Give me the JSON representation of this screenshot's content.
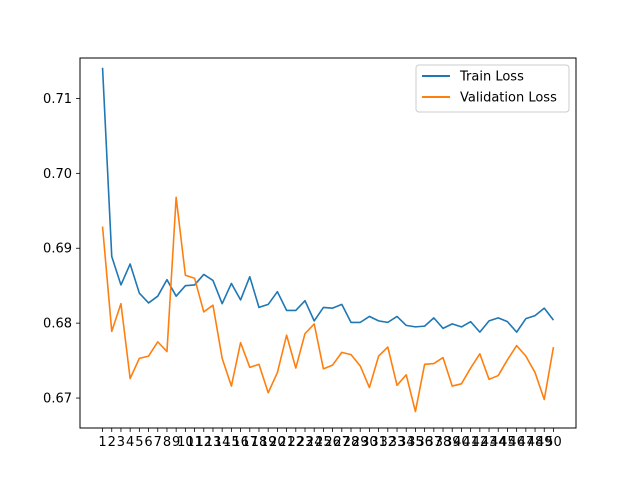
{
  "chart_data": {
    "type": "line",
    "title": "",
    "xlabel": "",
    "ylabel": "",
    "x": [
      1,
      2,
      3,
      4,
      5,
      6,
      7,
      8,
      9,
      10,
      11,
      12,
      13,
      14,
      15,
      16,
      17,
      18,
      19,
      20,
      21,
      22,
      23,
      24,
      25,
      26,
      27,
      28,
      29,
      30,
      31,
      32,
      33,
      34,
      35,
      36,
      37,
      38,
      39,
      40,
      41,
      42,
      43,
      44,
      45,
      46,
      47,
      48,
      49,
      50
    ],
    "xticks": [
      "1",
      "2",
      "3",
      "4",
      "5",
      "6",
      "7",
      "8",
      "9",
      "10",
      "11",
      "12",
      "13",
      "14",
      "15",
      "16",
      "17",
      "18",
      "19",
      "20",
      "21",
      "22",
      "23",
      "24",
      "25",
      "26",
      "27",
      "28",
      "29",
      "30",
      "31",
      "32",
      "33",
      "34",
      "35",
      "36",
      "37",
      "38",
      "39",
      "40",
      "41",
      "42",
      "43",
      "44",
      "45",
      "46",
      "47",
      "48",
      "49",
      "50"
    ],
    "ylim": [
      0.666,
      0.7154
    ],
    "yticks": [
      0.67,
      0.68,
      0.69,
      0.7,
      0.71
    ],
    "ytick_labels": [
      "0.67",
      "0.68",
      "0.69",
      "0.70",
      "0.71"
    ],
    "legend_position": "top-right",
    "grid": false,
    "series": [
      {
        "name": "Train Loss",
        "color": "#1f77b4",
        "values": [
          0.7141,
          0.6889,
          0.6851,
          0.6879,
          0.684,
          0.6827,
          0.6836,
          0.6858,
          0.6836,
          0.685,
          0.6851,
          0.6865,
          0.6857,
          0.6826,
          0.6853,
          0.6831,
          0.6862,
          0.6821,
          0.6825,
          0.6842,
          0.6817,
          0.6817,
          0.683,
          0.6803,
          0.6821,
          0.682,
          0.6825,
          0.6801,
          0.6801,
          0.6809,
          0.6803,
          0.6801,
          0.6809,
          0.6797,
          0.6795,
          0.6796,
          0.6807,
          0.6793,
          0.6799,
          0.6795,
          0.6802,
          0.6788,
          0.6803,
          0.6807,
          0.6802,
          0.6788,
          0.6806,
          0.681,
          0.682,
          0.6804
        ]
      },
      {
        "name": "Validation Loss",
        "color": "#ff7f0e",
        "values": [
          0.6929,
          0.6789,
          0.6826,
          0.6726,
          0.6753,
          0.6756,
          0.6775,
          0.6762,
          0.6968,
          0.6864,
          0.686,
          0.6815,
          0.6824,
          0.6753,
          0.6716,
          0.6774,
          0.6741,
          0.6745,
          0.6707,
          0.6734,
          0.6784,
          0.674,
          0.6786,
          0.6799,
          0.6739,
          0.6744,
          0.6761,
          0.6758,
          0.6743,
          0.6714,
          0.6756,
          0.6768,
          0.6717,
          0.6731,
          0.6682,
          0.6745,
          0.6746,
          0.6754,
          0.6716,
          0.6719,
          0.674,
          0.6759,
          0.6725,
          0.673,
          0.6751,
          0.677,
          0.6756,
          0.6734,
          0.6698,
          0.6768
        ]
      }
    ]
  }
}
